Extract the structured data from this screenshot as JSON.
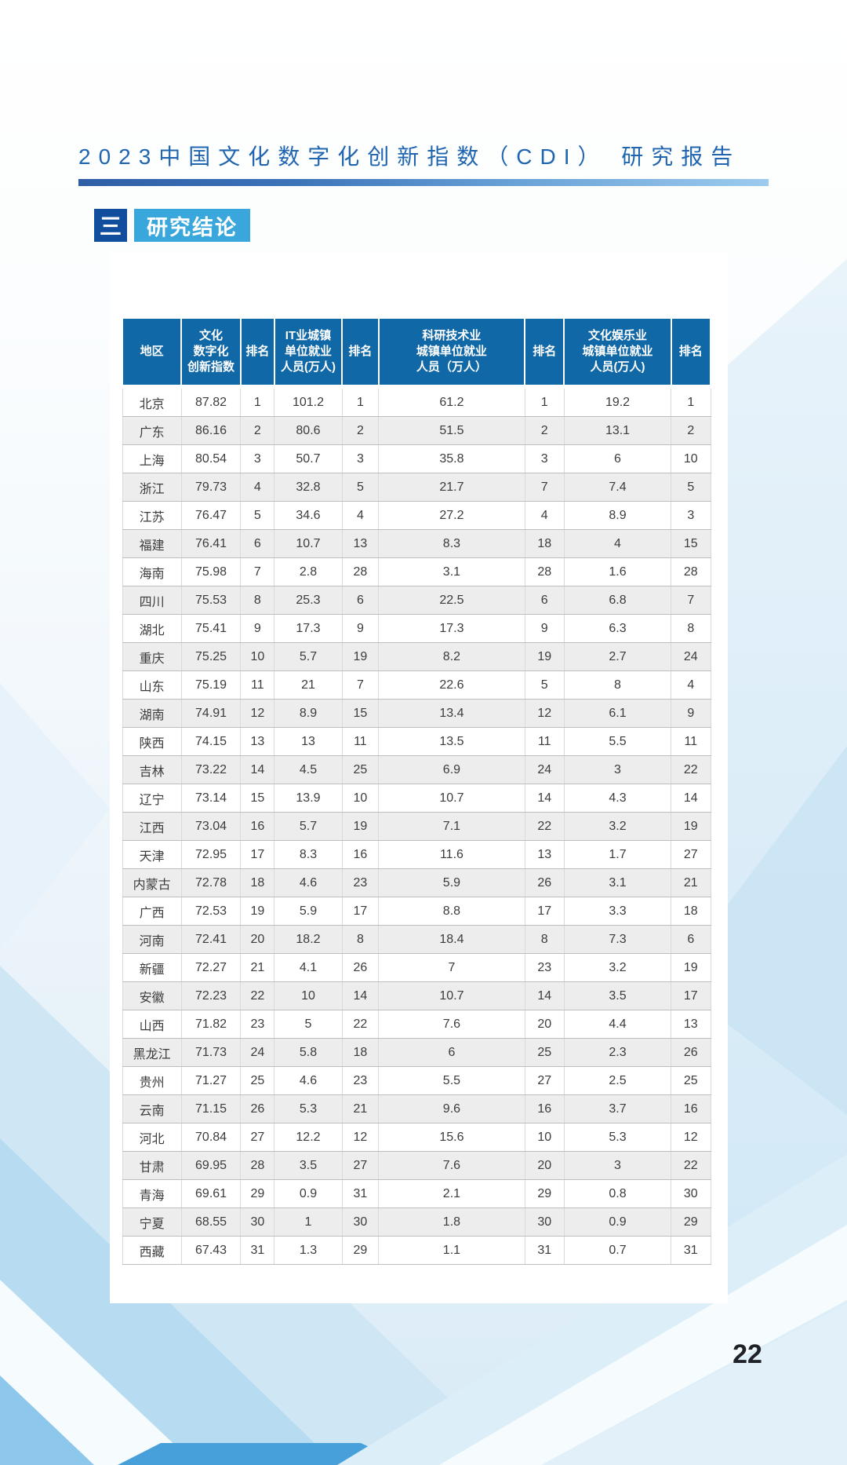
{
  "header": {
    "title": "2023中国文化数字化创新指数（CDI） 研究报告"
  },
  "section": {
    "marker": "三",
    "title": "研究结论"
  },
  "table": {
    "columns": [
      {
        "lines": [
          "地区"
        ]
      },
      {
        "lines": [
          "文化",
          "数字化",
          "创新指数"
        ]
      },
      {
        "lines": [
          "排名"
        ]
      },
      {
        "lines": [
          "IT业城镇",
          "单位就业",
          "人员(万人)"
        ]
      },
      {
        "lines": [
          "排名"
        ]
      },
      {
        "lines": [
          "科研技术业",
          "城镇单位就业",
          "人员（万人）"
        ]
      },
      {
        "lines": [
          "排名"
        ]
      },
      {
        "lines": [
          "文化娱乐业",
          "城镇单位就业",
          "人员(万人)"
        ]
      },
      {
        "lines": [
          "排名"
        ]
      }
    ],
    "rows": [
      [
        "北京",
        "87.82",
        "1",
        "101.2",
        "1",
        "61.2",
        "1",
        "19.2",
        "1"
      ],
      [
        "广东",
        "86.16",
        "2",
        "80.6",
        "2",
        "51.5",
        "2",
        "13.1",
        "2"
      ],
      [
        "上海",
        "80.54",
        "3",
        "50.7",
        "3",
        "35.8",
        "3",
        "6",
        "10"
      ],
      [
        "浙江",
        "79.73",
        "4",
        "32.8",
        "5",
        "21.7",
        "7",
        "7.4",
        "5"
      ],
      [
        "江苏",
        "76.47",
        "5",
        "34.6",
        "4",
        "27.2",
        "4",
        "8.9",
        "3"
      ],
      [
        "福建",
        "76.41",
        "6",
        "10.7",
        "13",
        "8.3",
        "18",
        "4",
        "15"
      ],
      [
        "海南",
        "75.98",
        "7",
        "2.8",
        "28",
        "3.1",
        "28",
        "1.6",
        "28"
      ],
      [
        "四川",
        "75.53",
        "8",
        "25.3",
        "6",
        "22.5",
        "6",
        "6.8",
        "7"
      ],
      [
        "湖北",
        "75.41",
        "9",
        "17.3",
        "9",
        "17.3",
        "9",
        "6.3",
        "8"
      ],
      [
        "重庆",
        "75.25",
        "10",
        "5.7",
        "19",
        "8.2",
        "19",
        "2.7",
        "24"
      ],
      [
        "山东",
        "75.19",
        "11",
        "21",
        "7",
        "22.6",
        "5",
        "8",
        "4"
      ],
      [
        "湖南",
        "74.91",
        "12",
        "8.9",
        "15",
        "13.4",
        "12",
        "6.1",
        "9"
      ],
      [
        "陕西",
        "74.15",
        "13",
        "13",
        "11",
        "13.5",
        "11",
        "5.5",
        "11"
      ],
      [
        "吉林",
        "73.22",
        "14",
        "4.5",
        "25",
        "6.9",
        "24",
        "3",
        "22"
      ],
      [
        "辽宁",
        "73.14",
        "15",
        "13.9",
        "10",
        "10.7",
        "14",
        "4.3",
        "14"
      ],
      [
        "江西",
        "73.04",
        "16",
        "5.7",
        "19",
        "7.1",
        "22",
        "3.2",
        "19"
      ],
      [
        "天津",
        "72.95",
        "17",
        "8.3",
        "16",
        "11.6",
        "13",
        "1.7",
        "27"
      ],
      [
        "内蒙古",
        "72.78",
        "18",
        "4.6",
        "23",
        "5.9",
        "26",
        "3.1",
        "21"
      ],
      [
        "广西",
        "72.53",
        "19",
        "5.9",
        "17",
        "8.8",
        "17",
        "3.3",
        "18"
      ],
      [
        "河南",
        "72.41",
        "20",
        "18.2",
        "8",
        "18.4",
        "8",
        "7.3",
        "6"
      ],
      [
        "新疆",
        "72.27",
        "21",
        "4.1",
        "26",
        "7",
        "23",
        "3.2",
        "19"
      ],
      [
        "安徽",
        "72.23",
        "22",
        "10",
        "14",
        "10.7",
        "14",
        "3.5",
        "17"
      ],
      [
        "山西",
        "71.82",
        "23",
        "5",
        "22",
        "7.6",
        "20",
        "4.4",
        "13"
      ],
      [
        "黑龙江",
        "71.73",
        "24",
        "5.8",
        "18",
        "6",
        "25",
        "2.3",
        "26"
      ],
      [
        "贵州",
        "71.27",
        "25",
        "4.6",
        "23",
        "5.5",
        "27",
        "2.5",
        "25"
      ],
      [
        "云南",
        "71.15",
        "26",
        "5.3",
        "21",
        "9.6",
        "16",
        "3.7",
        "16"
      ],
      [
        "河北",
        "70.84",
        "27",
        "12.2",
        "12",
        "15.6",
        "10",
        "5.3",
        "12"
      ],
      [
        "甘肃",
        "69.95",
        "28",
        "3.5",
        "27",
        "7.6",
        "20",
        "3",
        "22"
      ],
      [
        "青海",
        "69.61",
        "29",
        "0.9",
        "31",
        "2.1",
        "29",
        "0.8",
        "30"
      ],
      [
        "宁夏",
        "68.55",
        "30",
        "1",
        "30",
        "1.8",
        "30",
        "0.9",
        "29"
      ],
      [
        "西藏",
        "67.43",
        "31",
        "1.3",
        "29",
        "1.1",
        "31",
        "0.7",
        "31"
      ]
    ]
  },
  "footer": {
    "page_number": "22"
  },
  "colors": {
    "accent_blue": "#1168a6",
    "section_cyan": "#39a7db",
    "section_navy": "#114f9e",
    "title_blue": "#2065b0"
  }
}
